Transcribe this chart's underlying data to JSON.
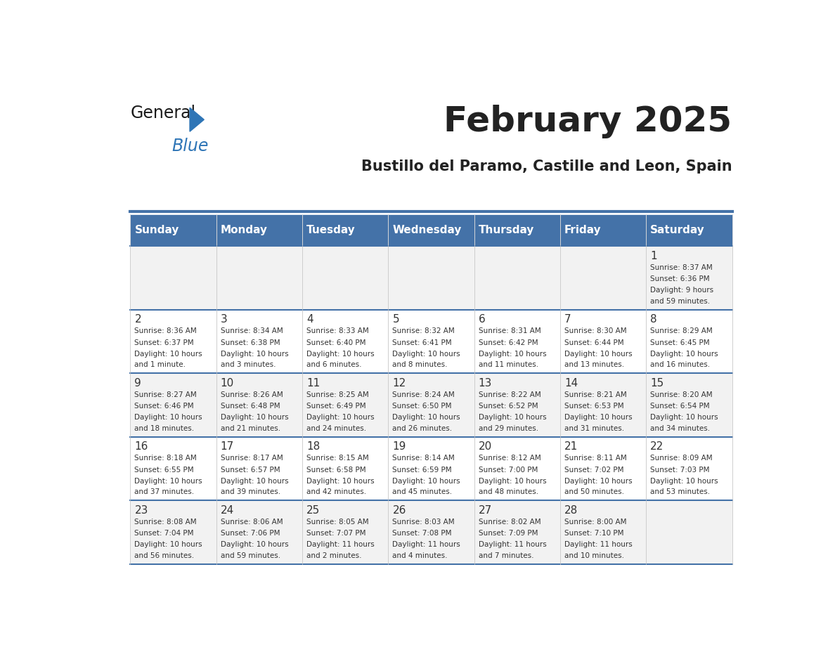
{
  "title": "February 2025",
  "subtitle": "Bustillo del Paramo, Castille and Leon, Spain",
  "header_color": "#4472a8",
  "header_text_color": "#ffffff",
  "bg_color": "#ffffff",
  "cell_bg_even": "#f2f2f2",
  "cell_bg_odd": "#ffffff",
  "day_headers": [
    "Sunday",
    "Monday",
    "Tuesday",
    "Wednesday",
    "Thursday",
    "Friday",
    "Saturday"
  ],
  "title_color": "#222222",
  "subtitle_color": "#222222",
  "text_color": "#333333",
  "line_color": "#4472a8",
  "days": [
    {
      "day": 1,
      "col": 6,
      "row": 0,
      "sunrise": "8:37 AM",
      "sunset": "6:36 PM",
      "daylight": "9 hours and 59 minutes."
    },
    {
      "day": 2,
      "col": 0,
      "row": 1,
      "sunrise": "8:36 AM",
      "sunset": "6:37 PM",
      "daylight": "10 hours and 1 minute."
    },
    {
      "day": 3,
      "col": 1,
      "row": 1,
      "sunrise": "8:34 AM",
      "sunset": "6:38 PM",
      "daylight": "10 hours and 3 minutes."
    },
    {
      "day": 4,
      "col": 2,
      "row": 1,
      "sunrise": "8:33 AM",
      "sunset": "6:40 PM",
      "daylight": "10 hours and 6 minutes."
    },
    {
      "day": 5,
      "col": 3,
      "row": 1,
      "sunrise": "8:32 AM",
      "sunset": "6:41 PM",
      "daylight": "10 hours and 8 minutes."
    },
    {
      "day": 6,
      "col": 4,
      "row": 1,
      "sunrise": "8:31 AM",
      "sunset": "6:42 PM",
      "daylight": "10 hours and 11 minutes."
    },
    {
      "day": 7,
      "col": 5,
      "row": 1,
      "sunrise": "8:30 AM",
      "sunset": "6:44 PM",
      "daylight": "10 hours and 13 minutes."
    },
    {
      "day": 8,
      "col": 6,
      "row": 1,
      "sunrise": "8:29 AM",
      "sunset": "6:45 PM",
      "daylight": "10 hours and 16 minutes."
    },
    {
      "day": 9,
      "col": 0,
      "row": 2,
      "sunrise": "8:27 AM",
      "sunset": "6:46 PM",
      "daylight": "10 hours and 18 minutes."
    },
    {
      "day": 10,
      "col": 1,
      "row": 2,
      "sunrise": "8:26 AM",
      "sunset": "6:48 PM",
      "daylight": "10 hours and 21 minutes."
    },
    {
      "day": 11,
      "col": 2,
      "row": 2,
      "sunrise": "8:25 AM",
      "sunset": "6:49 PM",
      "daylight": "10 hours and 24 minutes."
    },
    {
      "day": 12,
      "col": 3,
      "row": 2,
      "sunrise": "8:24 AM",
      "sunset": "6:50 PM",
      "daylight": "10 hours and 26 minutes."
    },
    {
      "day": 13,
      "col": 4,
      "row": 2,
      "sunrise": "8:22 AM",
      "sunset": "6:52 PM",
      "daylight": "10 hours and 29 minutes."
    },
    {
      "day": 14,
      "col": 5,
      "row": 2,
      "sunrise": "8:21 AM",
      "sunset": "6:53 PM",
      "daylight": "10 hours and 31 minutes."
    },
    {
      "day": 15,
      "col": 6,
      "row": 2,
      "sunrise": "8:20 AM",
      "sunset": "6:54 PM",
      "daylight": "10 hours and 34 minutes."
    },
    {
      "day": 16,
      "col": 0,
      "row": 3,
      "sunrise": "8:18 AM",
      "sunset": "6:55 PM",
      "daylight": "10 hours and 37 minutes."
    },
    {
      "day": 17,
      "col": 1,
      "row": 3,
      "sunrise": "8:17 AM",
      "sunset": "6:57 PM",
      "daylight": "10 hours and 39 minutes."
    },
    {
      "day": 18,
      "col": 2,
      "row": 3,
      "sunrise": "8:15 AM",
      "sunset": "6:58 PM",
      "daylight": "10 hours and 42 minutes."
    },
    {
      "day": 19,
      "col": 3,
      "row": 3,
      "sunrise": "8:14 AM",
      "sunset": "6:59 PM",
      "daylight": "10 hours and 45 minutes."
    },
    {
      "day": 20,
      "col": 4,
      "row": 3,
      "sunrise": "8:12 AM",
      "sunset": "7:00 PM",
      "daylight": "10 hours and 48 minutes."
    },
    {
      "day": 21,
      "col": 5,
      "row": 3,
      "sunrise": "8:11 AM",
      "sunset": "7:02 PM",
      "daylight": "10 hours and 50 minutes."
    },
    {
      "day": 22,
      "col": 6,
      "row": 3,
      "sunrise": "8:09 AM",
      "sunset": "7:03 PM",
      "daylight": "10 hours and 53 minutes."
    },
    {
      "day": 23,
      "col": 0,
      "row": 4,
      "sunrise": "8:08 AM",
      "sunset": "7:04 PM",
      "daylight": "10 hours and 56 minutes."
    },
    {
      "day": 24,
      "col": 1,
      "row": 4,
      "sunrise": "8:06 AM",
      "sunset": "7:06 PM",
      "daylight": "10 hours and 59 minutes."
    },
    {
      "day": 25,
      "col": 2,
      "row": 4,
      "sunrise": "8:05 AM",
      "sunset": "7:07 PM",
      "daylight": "11 hours and 2 minutes."
    },
    {
      "day": 26,
      "col": 3,
      "row": 4,
      "sunrise": "8:03 AM",
      "sunset": "7:08 PM",
      "daylight": "11 hours and 4 minutes."
    },
    {
      "day": 27,
      "col": 4,
      "row": 4,
      "sunrise": "8:02 AM",
      "sunset": "7:09 PM",
      "daylight": "11 hours and 7 minutes."
    },
    {
      "day": 28,
      "col": 5,
      "row": 4,
      "sunrise": "8:00 AM",
      "sunset": "7:10 PM",
      "daylight": "11 hours and 10 minutes."
    }
  ]
}
